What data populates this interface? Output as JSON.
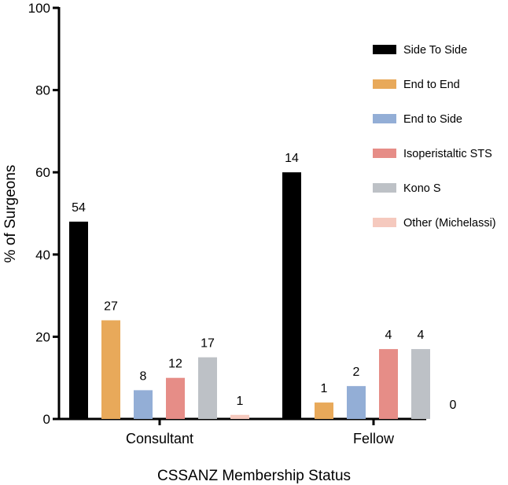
{
  "chart_data": {
    "type": "bar",
    "title": "",
    "xlabel": "CSSANZ Membership Status",
    "ylabel": "% of Surgeons",
    "ylim": [
      0,
      100
    ],
    "yticks": [
      0,
      20,
      40,
      60,
      80,
      100
    ],
    "categories": [
      "Consultant",
      "Fellow"
    ],
    "legend_position": "right",
    "series": [
      {
        "name": "Side To Side",
        "color": "#000000",
        "values": [
          48,
          60
        ],
        "labels": [
          "54",
          "14"
        ]
      },
      {
        "name": "End to End",
        "color": "#E8A95A",
        "values": [
          24,
          4
        ],
        "labels": [
          "27",
          "1"
        ]
      },
      {
        "name": "End to Side",
        "color": "#93AED6",
        "values": [
          7,
          8
        ],
        "labels": [
          "8",
          "2"
        ]
      },
      {
        "name": "Isoperistaltic STS",
        "color": "#E68D87",
        "values": [
          10,
          17
        ],
        "labels": [
          "12",
          "4"
        ]
      },
      {
        "name": "Kono S",
        "color": "#BDC1C6",
        "values": [
          15,
          17
        ],
        "labels": [
          "17",
          "4"
        ]
      },
      {
        "name": "Other (Michelassi)",
        "color": "#F5C9BE",
        "values": [
          1,
          0
        ],
        "labels": [
          "1",
          "0"
        ]
      }
    ]
  }
}
